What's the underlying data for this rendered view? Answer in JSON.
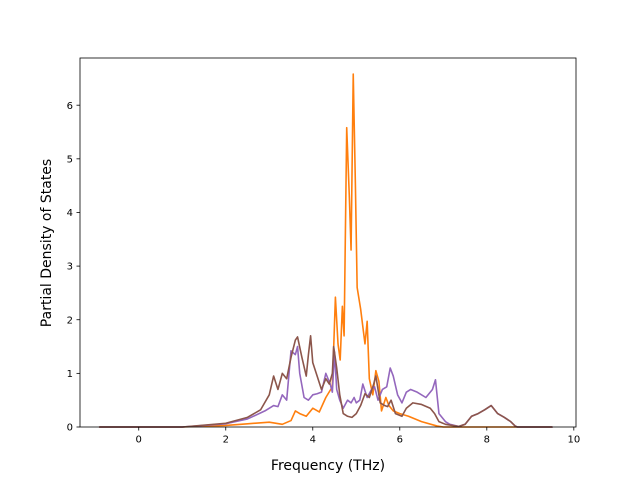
{
  "chart_data": {
    "type": "line",
    "title": "",
    "xlabel": "Frequency (THz)",
    "ylabel": "Partial Density of States",
    "xlim": [
      -1.35,
      10.05
    ],
    "ylim": [
      0,
      6.88
    ],
    "xticks": [
      0,
      2,
      4,
      6,
      8,
      10
    ],
    "yticks": [
      0,
      1,
      2,
      3,
      4,
      5,
      6
    ],
    "grid": false,
    "legend": "none",
    "series": [
      {
        "color": "#ff7f0e",
        "points": [
          [
            -0.9,
            0
          ],
          [
            1.0,
            0.0
          ],
          [
            2.0,
            0.03
          ],
          [
            2.5,
            0.06
          ],
          [
            3.0,
            0.09
          ],
          [
            3.3,
            0.05
          ],
          [
            3.5,
            0.12
          ],
          [
            3.6,
            0.3
          ],
          [
            3.7,
            0.25
          ],
          [
            3.85,
            0.2
          ],
          [
            4.0,
            0.35
          ],
          [
            4.15,
            0.28
          ],
          [
            4.3,
            0.55
          ],
          [
            4.45,
            0.75
          ],
          [
            4.52,
            2.42
          ],
          [
            4.58,
            1.55
          ],
          [
            4.63,
            1.25
          ],
          [
            4.68,
            2.25
          ],
          [
            4.72,
            1.7
          ],
          [
            4.78,
            5.58
          ],
          [
            4.84,
            4.3
          ],
          [
            4.88,
            3.3
          ],
          [
            4.93,
            6.58
          ],
          [
            4.98,
            4.5
          ],
          [
            5.02,
            2.6
          ],
          [
            5.1,
            2.2
          ],
          [
            5.2,
            1.55
          ],
          [
            5.25,
            1.97
          ],
          [
            5.3,
            0.9
          ],
          [
            5.38,
            0.6
          ],
          [
            5.45,
            1.05
          ],
          [
            5.52,
            0.85
          ],
          [
            5.58,
            0.3
          ],
          [
            5.68,
            0.55
          ],
          [
            5.75,
            0.4
          ],
          [
            5.85,
            0.3
          ],
          [
            6.0,
            0.25
          ],
          [
            6.2,
            0.2
          ],
          [
            6.5,
            0.1
          ],
          [
            6.85,
            0.02
          ],
          [
            7.0,
            0
          ],
          [
            9.5,
            0
          ]
        ]
      },
      {
        "color": "#9467bd",
        "points": [
          [
            -0.9,
            0
          ],
          [
            1.0,
            0.0
          ],
          [
            2.0,
            0.06
          ],
          [
            2.5,
            0.15
          ],
          [
            2.9,
            0.3
          ],
          [
            3.1,
            0.4
          ],
          [
            3.2,
            0.38
          ],
          [
            3.3,
            0.6
          ],
          [
            3.4,
            0.5
          ],
          [
            3.5,
            1.42
          ],
          [
            3.6,
            1.35
          ],
          [
            3.65,
            1.5
          ],
          [
            3.7,
            1.0
          ],
          [
            3.8,
            0.55
          ],
          [
            3.9,
            0.5
          ],
          [
            4.0,
            0.6
          ],
          [
            4.1,
            0.62
          ],
          [
            4.2,
            0.65
          ],
          [
            4.3,
            1.0
          ],
          [
            4.4,
            0.8
          ],
          [
            4.45,
            0.65
          ],
          [
            4.5,
            1.4
          ],
          [
            4.55,
            0.7
          ],
          [
            4.62,
            0.5
          ],
          [
            4.7,
            0.35
          ],
          [
            4.8,
            0.5
          ],
          [
            4.88,
            0.45
          ],
          [
            4.95,
            0.55
          ],
          [
            5.0,
            0.45
          ],
          [
            5.08,
            0.5
          ],
          [
            5.15,
            0.8
          ],
          [
            5.25,
            0.55
          ],
          [
            5.35,
            0.7
          ],
          [
            5.42,
            0.75
          ],
          [
            5.5,
            0.5
          ],
          [
            5.6,
            0.7
          ],
          [
            5.7,
            0.75
          ],
          [
            5.78,
            1.1
          ],
          [
            5.85,
            0.95
          ],
          [
            5.95,
            0.6
          ],
          [
            6.05,
            0.45
          ],
          [
            6.15,
            0.65
          ],
          [
            6.25,
            0.7
          ],
          [
            6.4,
            0.65
          ],
          [
            6.6,
            0.55
          ],
          [
            6.75,
            0.7
          ],
          [
            6.82,
            0.88
          ],
          [
            6.9,
            0.25
          ],
          [
            7.05,
            0.1
          ],
          [
            7.15,
            0.05
          ],
          [
            7.35,
            0.01
          ],
          [
            7.5,
            0.05
          ],
          [
            7.65,
            0.2
          ],
          [
            7.8,
            0.25
          ],
          [
            7.95,
            0.32
          ],
          [
            8.1,
            0.4
          ],
          [
            8.25,
            0.25
          ],
          [
            8.4,
            0.18
          ],
          [
            8.55,
            0.1
          ],
          [
            8.65,
            0.02
          ],
          [
            8.7,
            0
          ],
          [
            9.5,
            0
          ]
        ]
      },
      {
        "color": "#8c564b",
        "points": [
          [
            -0.9,
            0
          ],
          [
            1.0,
            0.0
          ],
          [
            2.0,
            0.07
          ],
          [
            2.5,
            0.18
          ],
          [
            2.8,
            0.32
          ],
          [
            3.0,
            0.6
          ],
          [
            3.1,
            0.95
          ],
          [
            3.2,
            0.7
          ],
          [
            3.3,
            1.0
          ],
          [
            3.4,
            0.9
          ],
          [
            3.5,
            1.3
          ],
          [
            3.6,
            1.62
          ],
          [
            3.65,
            1.68
          ],
          [
            3.75,
            1.3
          ],
          [
            3.85,
            0.95
          ],
          [
            3.9,
            1.35
          ],
          [
            3.95,
            1.7
          ],
          [
            4.0,
            1.2
          ],
          [
            4.1,
            0.95
          ],
          [
            4.2,
            0.7
          ],
          [
            4.3,
            0.9
          ],
          [
            4.38,
            0.8
          ],
          [
            4.45,
            1.0
          ],
          [
            4.48,
            1.5
          ],
          [
            4.55,
            1.1
          ],
          [
            4.62,
            0.6
          ],
          [
            4.7,
            0.25
          ],
          [
            4.8,
            0.2
          ],
          [
            4.9,
            0.18
          ],
          [
            5.0,
            0.25
          ],
          [
            5.1,
            0.4
          ],
          [
            5.2,
            0.62
          ],
          [
            5.3,
            0.55
          ],
          [
            5.4,
            0.8
          ],
          [
            5.45,
            0.95
          ],
          [
            5.55,
            0.45
          ],
          [
            5.65,
            0.4
          ],
          [
            5.72,
            0.38
          ],
          [
            5.8,
            0.5
          ],
          [
            5.9,
            0.25
          ],
          [
            6.05,
            0.2
          ],
          [
            6.15,
            0.35
          ],
          [
            6.3,
            0.45
          ],
          [
            6.5,
            0.42
          ],
          [
            6.7,
            0.35
          ],
          [
            6.8,
            0.25
          ],
          [
            6.9,
            0.1
          ],
          [
            7.05,
            0.05
          ],
          [
            7.35,
            0.01
          ],
          [
            7.5,
            0.05
          ],
          [
            7.65,
            0.2
          ],
          [
            7.8,
            0.25
          ],
          [
            7.95,
            0.32
          ],
          [
            8.1,
            0.4
          ],
          [
            8.25,
            0.25
          ],
          [
            8.4,
            0.18
          ],
          [
            8.55,
            0.1
          ],
          [
            8.65,
            0.02
          ],
          [
            8.7,
            0
          ],
          [
            9.5,
            0
          ]
        ]
      }
    ]
  }
}
